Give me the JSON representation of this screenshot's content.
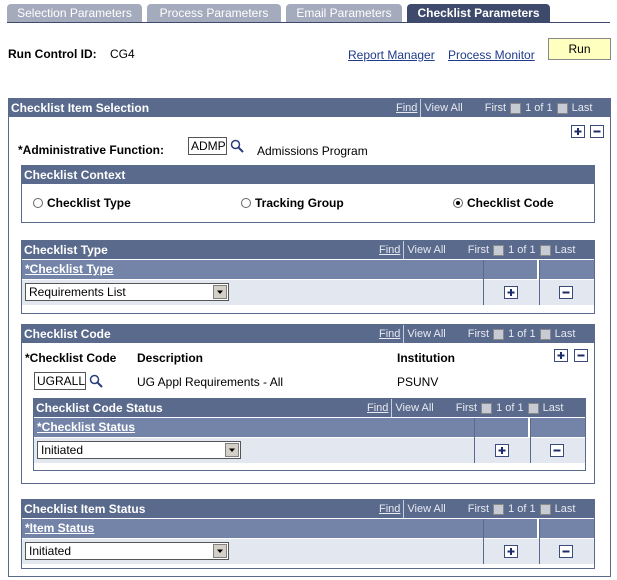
{
  "tabs": [
    "Selection Parameters",
    "Process Parameters",
    "Email Parameters",
    "Checklist Parameters"
  ],
  "run_control": {
    "label": "Run Control ID:",
    "value": "CG4"
  },
  "links": [
    "Report Manager",
    "Process Monitor"
  ],
  "run_button": "Run",
  "nav": {
    "find": "Find",
    "view_all": "View All",
    "first": "First",
    "count": "1 of 1",
    "last": "Last"
  },
  "item_selection": {
    "title": "Checklist Item Selection",
    "admin_label": "*Administrative Function:",
    "admin_value": "ADMP",
    "admin_desc": "Admissions Program"
  },
  "context": {
    "title": "Checklist Context",
    "options": [
      "Checklist Type",
      "Tracking Group",
      "Checklist Code"
    ],
    "selected": 2
  },
  "checklist_type": {
    "title": "Checklist Type",
    "column": "*Checklist Type",
    "value": "Requirements List"
  },
  "checklist_code": {
    "title": "Checklist Code",
    "columns": [
      "*Checklist Code",
      "Description",
      "Institution"
    ],
    "row": [
      "UGRALL",
      "UG Appl Requirements - All",
      "PSUNV"
    ]
  },
  "code_status": {
    "title": "Checklist Code Status",
    "column": "*Checklist Status",
    "value": "Initiated"
  },
  "item_status": {
    "title": "Checklist Item Status",
    "column": "*Item Status",
    "value": "Initiated"
  }
}
